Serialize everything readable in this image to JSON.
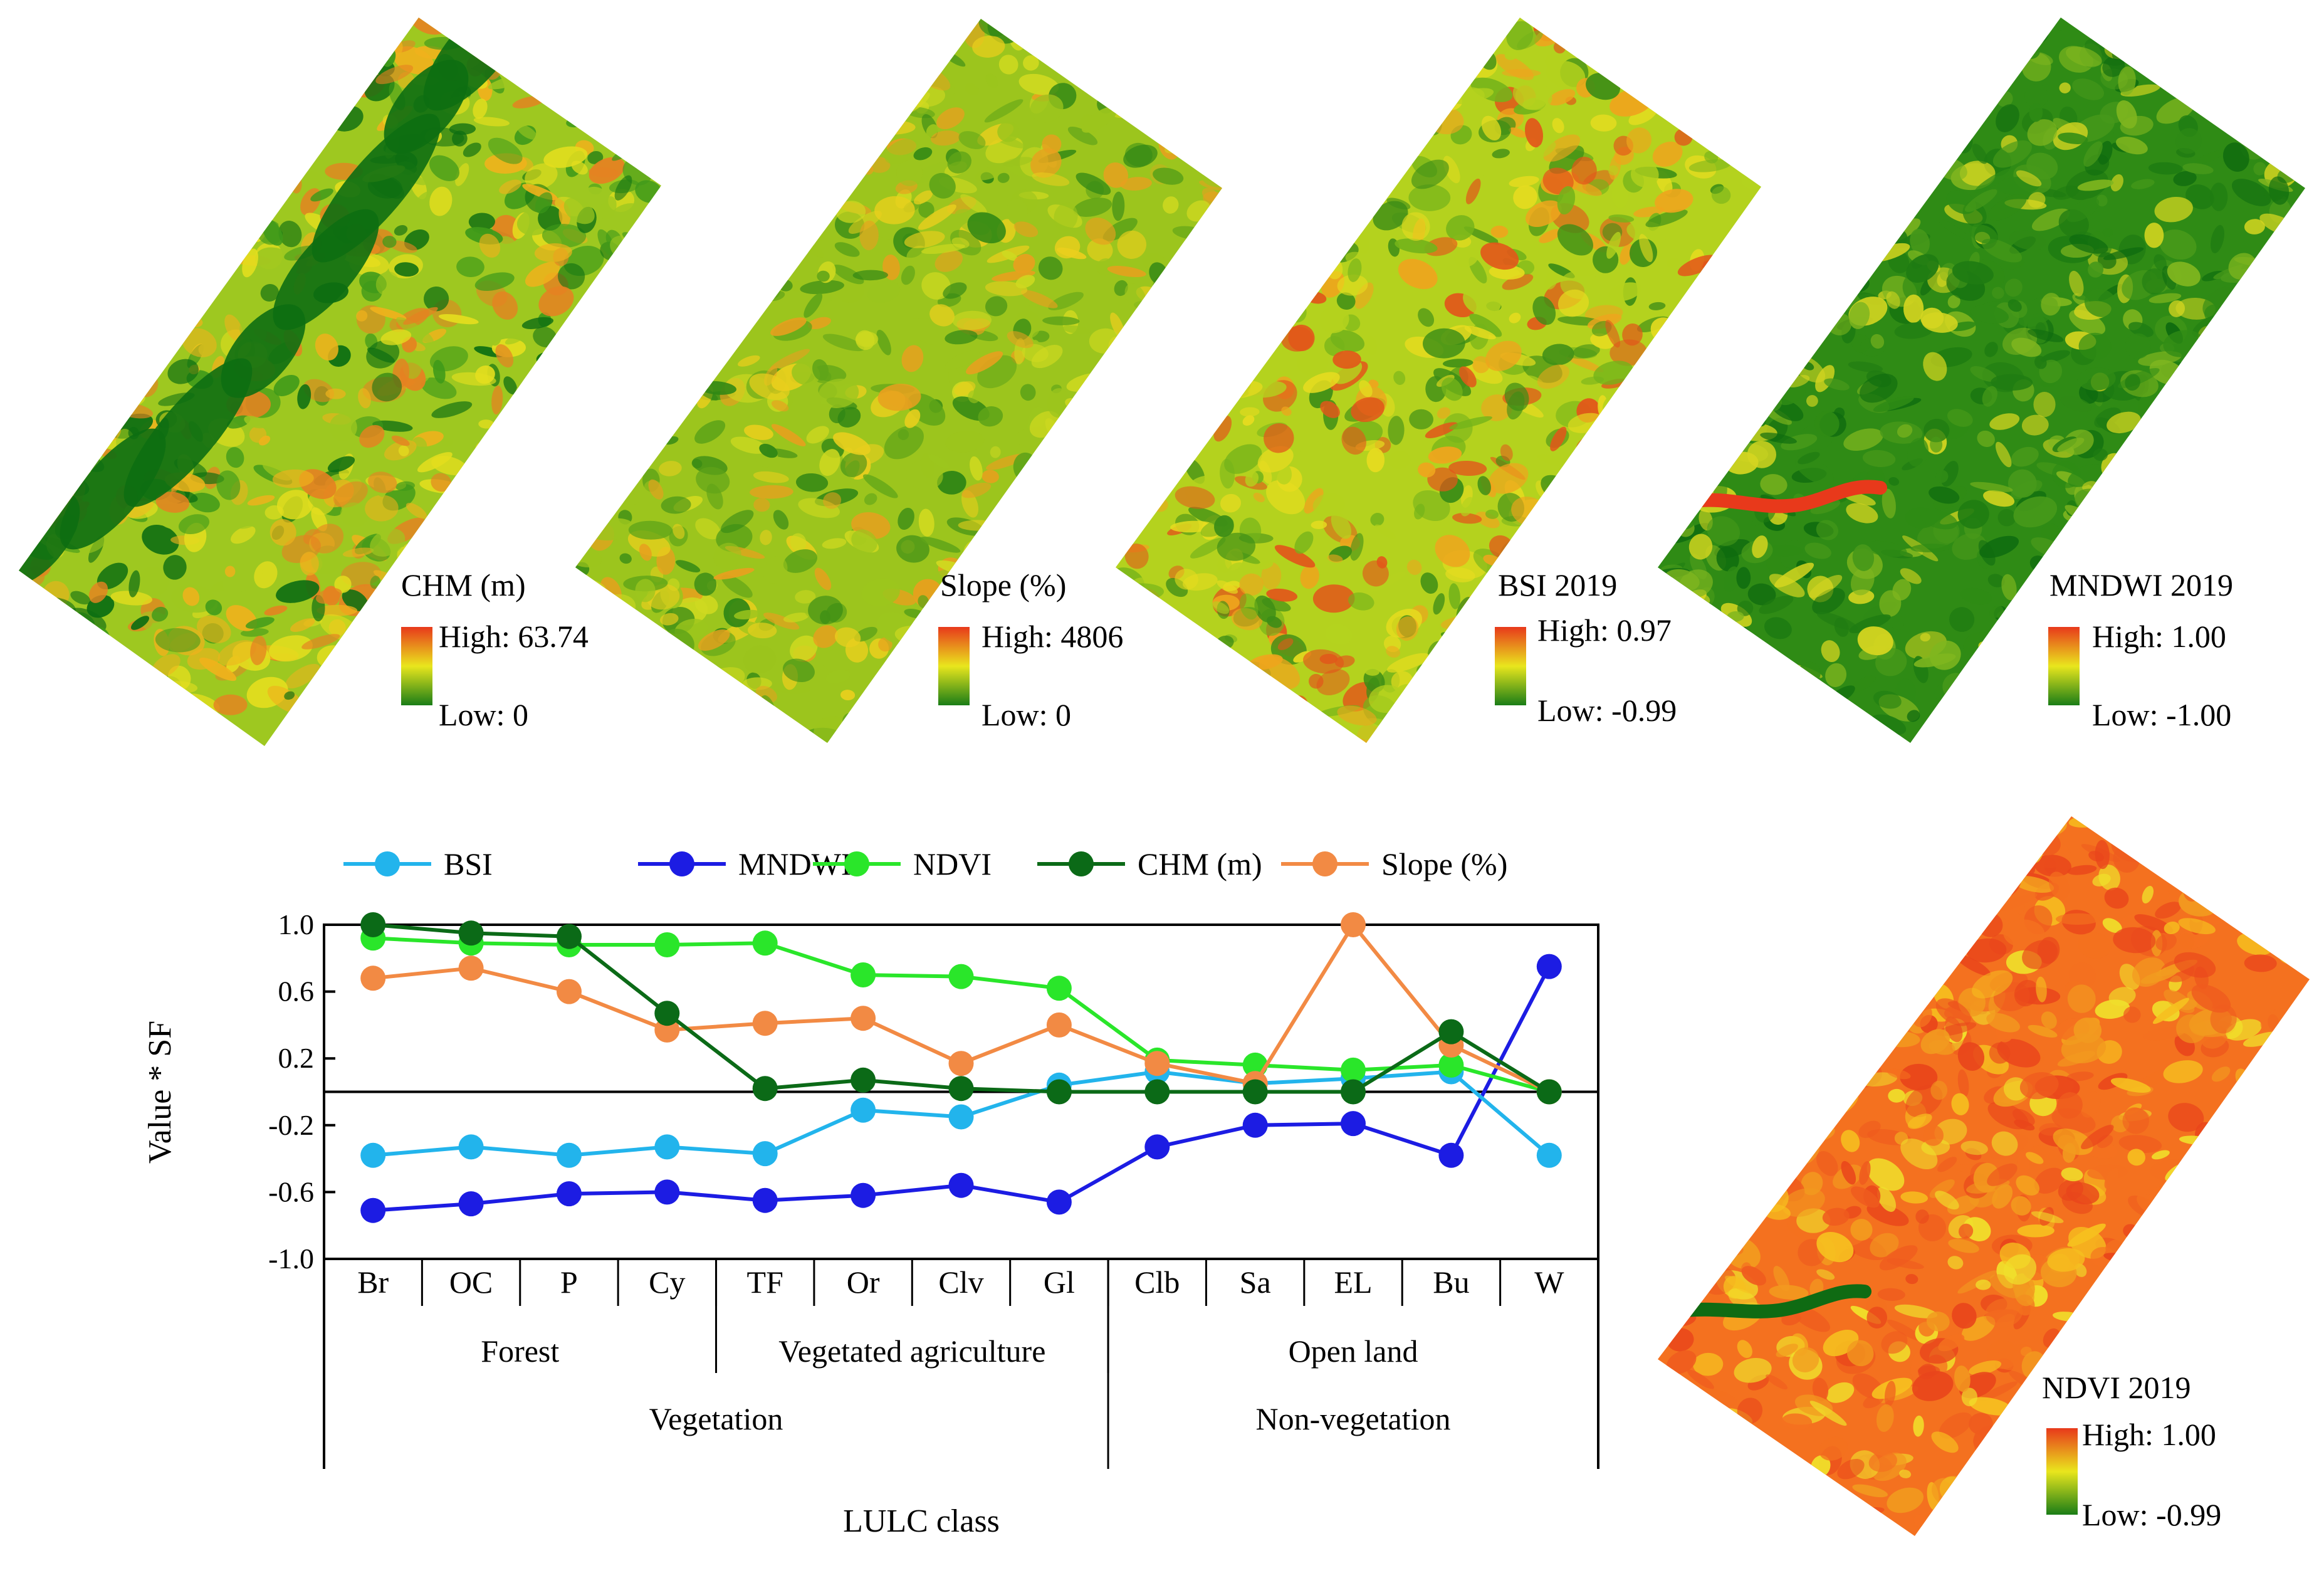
{
  "maps": [
    {
      "id": "chm",
      "title": "CHM (m)",
      "high": "High: 63.74",
      "low": "Low: 0",
      "colors": [
        "#0d6e12",
        "#3f9a1a",
        "#9ec820",
        "#e4de1e",
        "#efb21c",
        "#e58221"
      ]
    },
    {
      "id": "slope",
      "title": "Slope (%)",
      "high": "High: 4806",
      "low": "Low: 0",
      "colors": [
        "#2f8615",
        "#5fa418",
        "#9cc51d",
        "#cfd920",
        "#e9cf1d",
        "#e7a01e"
      ]
    },
    {
      "id": "bsi",
      "title": "BSI 2019",
      "high": "High: 0.97",
      "low": "Low: -0.99",
      "colors": [
        "#3c8d16",
        "#74b31a",
        "#b4d21e",
        "#e6dc1f",
        "#eea51d",
        "#e2561a"
      ]
    },
    {
      "id": "mndwi",
      "title": "MNDWI 2019",
      "high": "High: 1.00",
      "low": "Low: -1.00",
      "colors": [
        "#0e6b0f",
        "#1f7c12",
        "#2f8b15",
        "#47991a",
        "#7fb61f",
        "#d4d520"
      ]
    },
    {
      "id": "ndvi",
      "title": "NDVI 2019",
      "high": "High: 1.00",
      "low": "Low: -0.99",
      "colors": [
        "#e9451b",
        "#ef5b1e",
        "#f4711f",
        "#f29a1f",
        "#f6c01f",
        "#f0e02b"
      ]
    }
  ],
  "chart_data": {
    "type": "line",
    "ylabel": "Value * SF",
    "xlabel": "LULC class",
    "ylim": [
      -1.0,
      1.0
    ],
    "yticks": [
      "1.0",
      "0.6",
      "0.2",
      "-0.2",
      "-0.6",
      "-1.0"
    ],
    "ytick_values": [
      1.0,
      0.6,
      0.2,
      -0.2,
      -0.6,
      -1.0
    ],
    "categories": [
      "Br",
      "OC",
      "P",
      "Cy",
      "TF",
      "Or",
      "Clv",
      "Gl",
      "Clb",
      "Sa",
      "EL",
      "Bu",
      "W"
    ],
    "groups": [
      {
        "label": "Forest",
        "start": 0,
        "end": 3
      },
      {
        "label": "Vegetated agriculture",
        "start": 4,
        "end": 7
      },
      {
        "label": "Open land",
        "start": 8,
        "end": 12
      }
    ],
    "supergroups": [
      {
        "label": "Vegetation",
        "start": 0,
        "end": 7
      },
      {
        "label": "Non-vegetation",
        "start": 8,
        "end": 12
      }
    ],
    "legend_position": "top",
    "series": [
      {
        "name": "BSI",
        "color": "#22b4ec",
        "values": [
          -0.38,
          -0.33,
          -0.38,
          -0.33,
          -0.37,
          -0.11,
          -0.15,
          0.04,
          0.12,
          0.05,
          0.08,
          0.12,
          -0.38
        ]
      },
      {
        "name": "MNDWI",
        "color": "#1c1ce3",
        "values": [
          -0.71,
          -0.67,
          -0.61,
          -0.6,
          -0.65,
          -0.62,
          -0.56,
          -0.66,
          -0.33,
          -0.2,
          -0.19,
          -0.38,
          0.75
        ]
      },
      {
        "name": "NDVI",
        "color": "#2ae62a",
        "values": [
          0.92,
          0.89,
          0.88,
          0.88,
          0.89,
          0.7,
          0.69,
          0.62,
          0.19,
          0.16,
          0.13,
          0.16,
          0.0
        ]
      },
      {
        "name": "CHM (m)",
        "color": "#0b6a17",
        "values": [
          1.0,
          0.95,
          0.93,
          0.47,
          0.02,
          0.07,
          0.02,
          0.0,
          0.0,
          0.0,
          0.0,
          0.36,
          0.0
        ]
      },
      {
        "name": "Slope (%)",
        "color": "#f28a44",
        "values": [
          0.68,
          0.74,
          0.6,
          0.37,
          0.41,
          0.44,
          0.17,
          0.4,
          0.17,
          0.05,
          1.0,
          0.28,
          0.0
        ]
      }
    ]
  }
}
